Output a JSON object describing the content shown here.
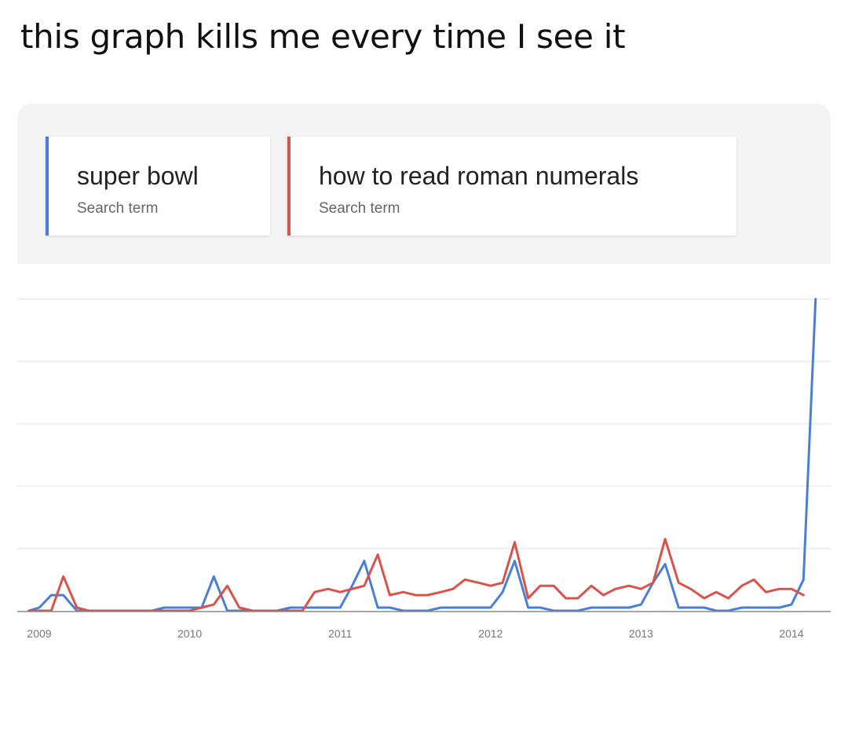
{
  "post": {
    "caption": "this graph kills me every time I see it"
  },
  "legend": [
    {
      "term": "super bowl",
      "subtitle": "Search term",
      "color": "#4a7fd6"
    },
    {
      "term": "how to read roman numerals",
      "subtitle": "Search term",
      "color": "#d9534a"
    }
  ],
  "chart_data": {
    "type": "line",
    "x_ticks": [
      "2009",
      "2010",
      "2011",
      "2012",
      "2013",
      "2014"
    ],
    "xlim": [
      2009,
      2014.2
    ],
    "ylim": [
      0,
      100
    ],
    "grid": true,
    "legend_position": "top",
    "series": [
      {
        "name": "super bowl",
        "color": "#4a7fd6",
        "x": [
          2008.93,
          2009.0,
          2009.08,
          2009.16,
          2009.25,
          2009.33,
          2009.42,
          2009.5,
          2009.58,
          2009.67,
          2009.75,
          2009.83,
          2009.92,
          2010.0,
          2010.08,
          2010.16,
          2010.25,
          2010.33,
          2010.42,
          2010.5,
          2010.58,
          2010.67,
          2010.75,
          2010.83,
          2010.92,
          2011.0,
          2011.08,
          2011.16,
          2011.25,
          2011.33,
          2011.42,
          2011.5,
          2011.58,
          2011.67,
          2011.75,
          2011.83,
          2011.92,
          2012.0,
          2012.08,
          2012.16,
          2012.25,
          2012.33,
          2012.42,
          2012.5,
          2012.58,
          2012.67,
          2012.75,
          2012.83,
          2012.92,
          2013.0,
          2013.08,
          2013.16,
          2013.25,
          2013.33,
          2013.42,
          2013.5,
          2013.58,
          2013.67,
          2013.75,
          2013.83,
          2013.92,
          2014.0,
          2014.08
        ],
        "values": [
          0,
          1,
          5,
          5,
          0,
          0,
          0,
          0,
          0,
          0,
          0,
          1,
          1,
          1,
          1,
          11,
          0,
          0,
          0,
          0,
          0,
          1,
          1,
          1,
          1,
          1,
          8,
          16,
          1,
          1,
          0,
          0,
          0,
          1,
          1,
          1,
          1,
          1,
          6,
          16,
          1,
          1,
          0,
          0,
          0,
          1,
          1,
          1,
          1,
          2,
          9,
          15,
          1,
          1,
          1,
          0,
          0,
          1,
          1,
          1,
          1,
          2,
          10
        ]
      },
      {
        "name": "how to read roman numerals",
        "color": "#d9534a",
        "x": [
          2008.93,
          2009.0,
          2009.08,
          2009.16,
          2009.25,
          2009.33,
          2009.42,
          2009.5,
          2009.58,
          2009.67,
          2009.75,
          2009.83,
          2009.92,
          2010.0,
          2010.08,
          2010.16,
          2010.25,
          2010.33,
          2010.42,
          2010.5,
          2010.58,
          2010.67,
          2010.75,
          2010.83,
          2010.92,
          2011.0,
          2011.08,
          2011.16,
          2011.25,
          2011.33,
          2011.42,
          2011.5,
          2011.58,
          2011.67,
          2011.75,
          2011.83,
          2011.92,
          2012.0,
          2012.08,
          2012.16,
          2012.25,
          2012.33,
          2012.42,
          2012.5,
          2012.58,
          2012.67,
          2012.75,
          2012.83,
          2012.92,
          2013.0,
          2013.08,
          2013.16,
          2013.25,
          2013.33,
          2013.42,
          2013.5,
          2013.58,
          2013.67,
          2013.75,
          2013.83,
          2013.92,
          2014.0,
          2014.08
        ],
        "values": [
          0,
          0,
          0,
          11,
          1,
          0,
          0,
          0,
          0,
          0,
          0,
          0,
          0,
          0,
          1,
          2,
          8,
          1,
          0,
          0,
          0,
          0,
          0,
          6,
          7,
          6,
          7,
          8,
          18,
          5,
          6,
          5,
          5,
          6,
          7,
          10,
          9,
          8,
          9,
          22,
          4,
          8,
          8,
          4,
          4,
          8,
          5,
          7,
          8,
          7,
          9,
          23,
          9,
          7,
          4,
          6,
          4,
          8,
          10,
          6,
          7,
          7,
          5
        ]
      },
      {
        "name": "super bowl",
        "color": "#4a7fd6",
        "x": [
          2014.08,
          2014.16
        ],
        "values": [
          10,
          100
        ]
      }
    ]
  }
}
